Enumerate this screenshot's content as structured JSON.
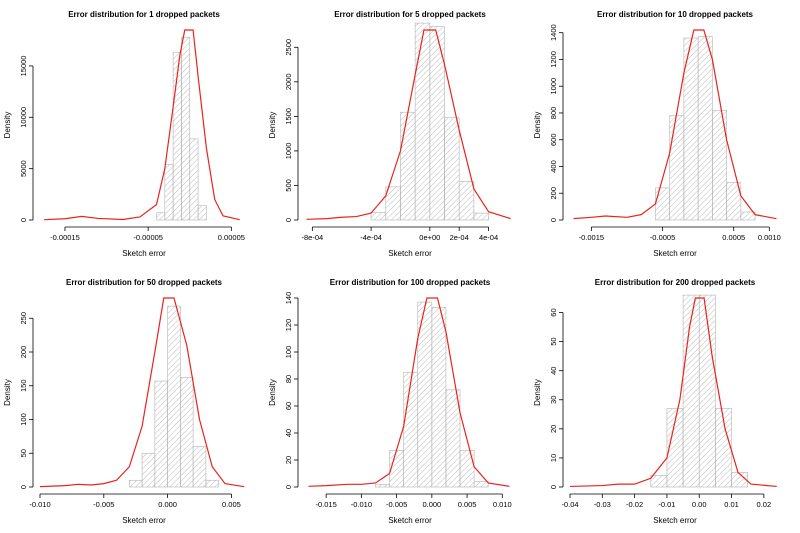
{
  "chart_data": [
    {
      "type": "histogram",
      "title": "Error distribution for 1 dropped packets",
      "xlabel": "Sketch error",
      "ylabel": "Density",
      "xlim": [
        -0.00018,
        7e-05
      ],
      "ylim": [
        0,
        18500
      ],
      "xticks": [
        -0.00015,
        -5e-05,
        5e-05
      ],
      "xtick_labels": [
        "-0.00015",
        "-0.00005",
        "0.00005"
      ],
      "yticks": [
        0,
        5000,
        10000,
        15000
      ],
      "ytick_labels": [
        "0",
        "5000",
        "10000",
        "15000"
      ],
      "bins": [
        [
          -4e-05,
          -3e-05,
          700
        ],
        [
          -3e-05,
          -2e-05,
          5400
        ],
        [
          -2e-05,
          -1e-05,
          16300
        ],
        [
          -1e-05,
          0.0,
          17800
        ],
        [
          0.0,
          1e-05,
          7900
        ],
        [
          1e-05,
          2e-05,
          1400
        ]
      ],
      "density_curve": [
        [
          -0.000175,
          30
        ],
        [
          -0.00015,
          120
        ],
        [
          -0.00013,
          350
        ],
        [
          -0.00011,
          150
        ],
        [
          -8e-05,
          50
        ],
        [
          -6e-05,
          300
        ],
        [
          -4e-05,
          1500
        ],
        [
          -3e-05,
          5000
        ],
        [
          -2e-05,
          11000
        ],
        [
          -1.2e-05,
          16000
        ],
        [
          -6e-06,
          18500
        ],
        [
          4e-06,
          18500
        ],
        [
          1e-05,
          14000
        ],
        [
          2e-05,
          7000
        ],
        [
          3e-05,
          2000
        ],
        [
          4e-05,
          400
        ],
        [
          6e-05,
          30
        ]
      ]
    },
    {
      "type": "histogram",
      "title": "Error distribution for 5 dropped packets",
      "xlabel": "Sketch error",
      "ylabel": "Density",
      "xlim": [
        -0.00085,
        0.00058
      ],
      "ylim": [
        0,
        2750
      ],
      "xticks": [
        -0.0008,
        -0.0004,
        0.0,
        0.0002,
        0.0004
      ],
      "xtick_labels": [
        "-8e-04",
        "-4e-04",
        "0e+00",
        "2e-04",
        "4e-04"
      ],
      "yticks": [
        0,
        500,
        1000,
        1500,
        2000,
        2500
      ],
      "ytick_labels": [
        "0",
        "500",
        "1000",
        "1500",
        "2000",
        "2500"
      ],
      "bins": [
        [
          -0.0004,
          -0.0003,
          110
        ],
        [
          -0.0003,
          -0.0002,
          480
        ],
        [
          -0.0002,
          -0.0001,
          1560
        ],
        [
          -0.0001,
          0.0,
          2850
        ],
        [
          0.0,
          0.0001,
          2800
        ],
        [
          0.0001,
          0.0002,
          1480
        ],
        [
          0.0002,
          0.0003,
          560
        ],
        [
          0.0003,
          0.0004,
          100
        ]
      ],
      "density_curve": [
        [
          -0.00084,
          10
        ],
        [
          -0.0007,
          20
        ],
        [
          -0.0006,
          40
        ],
        [
          -0.0005,
          50
        ],
        [
          -0.0004,
          100
        ],
        [
          -0.0003,
          350
        ],
        [
          -0.0002,
          1000
        ],
        [
          -0.0001,
          2100
        ],
        [
          -4e-05,
          2750
        ],
        [
          4e-05,
          2750
        ],
        [
          0.0001,
          2250
        ],
        [
          0.0002,
          1300
        ],
        [
          0.0003,
          450
        ],
        [
          0.0004,
          120
        ],
        [
          0.00055,
          20
        ]
      ]
    },
    {
      "type": "histogram",
      "title": "Error distribution for 10 dropped packets",
      "xlabel": "Sketch error",
      "ylabel": "Density",
      "xlim": [
        -0.0018,
        0.00115
      ],
      "ylim": [
        0,
        1420
      ],
      "xticks": [
        -0.0015,
        -0.0005,
        0.0005,
        0.001
      ],
      "xtick_labels": [
        "-0.0015",
        "-0.0005",
        "0.0005",
        "0.0010"
      ],
      "yticks": [
        0,
        200,
        400,
        600,
        800,
        1000,
        1200,
        1400
      ],
      "ytick_labels": [
        "0",
        "200",
        "400",
        "600",
        "800",
        "1000",
        "1200",
        "1400"
      ],
      "bins": [
        [
          -0.0006,
          -0.0004,
          240
        ],
        [
          -0.0004,
          -0.0002,
          780
        ],
        [
          -0.0002,
          0.0,
          1360
        ],
        [
          0.0,
          0.0002,
          1370
        ],
        [
          0.0002,
          0.0004,
          820
        ],
        [
          0.0004,
          0.0006,
          280
        ],
        [
          0.0006,
          0.0008,
          60
        ]
      ],
      "density_curve": [
        [
          -0.00175,
          10
        ],
        [
          -0.0015,
          20
        ],
        [
          -0.0013,
          30
        ],
        [
          -0.001,
          20
        ],
        [
          -0.0008,
          40
        ],
        [
          -0.0006,
          120
        ],
        [
          -0.0004,
          500
        ],
        [
          -0.0002,
          1100
        ],
        [
          -6e-05,
          1420
        ],
        [
          8e-05,
          1420
        ],
        [
          0.0002,
          1200
        ],
        [
          0.0004,
          600
        ],
        [
          0.0006,
          180
        ],
        [
          0.0008,
          40
        ],
        [
          0.0011,
          10
        ]
      ]
    },
    {
      "type": "histogram",
      "title": "Error distribution for 50 dropped packets",
      "xlabel": "Sketch error",
      "ylabel": "Density",
      "xlim": [
        -0.01,
        0.0063
      ],
      "ylim": [
        0,
        280
      ],
      "xticks": [
        -0.01,
        -0.005,
        0.0,
        0.005
      ],
      "xtick_labels": [
        "-0.010",
        "-0.005",
        "0.000",
        "0.005"
      ],
      "yticks": [
        0,
        50,
        100,
        150,
        200,
        250
      ],
      "ytick_labels": [
        "0",
        "50",
        "100",
        "150",
        "200",
        "250"
      ],
      "bins": [
        [
          -0.003,
          -0.002,
          10
        ],
        [
          -0.002,
          -0.001,
          50
        ],
        [
          -0.001,
          0.0,
          157
        ],
        [
          0.0,
          0.001,
          268
        ],
        [
          0.001,
          0.002,
          162
        ],
        [
          0.002,
          0.003,
          60
        ],
        [
          0.003,
          0.004,
          10
        ]
      ],
      "density_curve": [
        [
          -0.01,
          0.5
        ],
        [
          -0.008,
          2
        ],
        [
          -0.007,
          4
        ],
        [
          -0.006,
          3
        ],
        [
          -0.005,
          5
        ],
        [
          -0.004,
          10
        ],
        [
          -0.003,
          30
        ],
        [
          -0.002,
          90
        ],
        [
          -0.001,
          200
        ],
        [
          -0.0003,
          280
        ],
        [
          0.0005,
          280
        ],
        [
          0.0015,
          210
        ],
        [
          0.0025,
          100
        ],
        [
          0.0035,
          30
        ],
        [
          0.0045,
          5
        ],
        [
          0.006,
          0.5
        ]
      ]
    },
    {
      "type": "histogram",
      "title": "Error distribution for 100 dropped packets",
      "xlabel": "Sketch error",
      "ylabel": "Density",
      "xlim": [
        -0.018,
        0.0118
      ],
      "ylim": [
        0,
        140
      ],
      "xticks": [
        -0.015,
        -0.01,
        -0.005,
        0.0,
        0.005,
        0.01
      ],
      "xtick_labels": [
        "-0.015",
        "-0.010",
        "-0.005",
        "0.000",
        "0.005",
        "0.010"
      ],
      "yticks": [
        0,
        20,
        40,
        60,
        80,
        100,
        120,
        140
      ],
      "ytick_labels": [
        "0",
        "20",
        "40",
        "60",
        "80",
        "100",
        "120",
        "140"
      ],
      "bins": [
        [
          -0.008,
          -0.006,
          2
        ],
        [
          -0.006,
          -0.004,
          27
        ],
        [
          -0.004,
          -0.002,
          85
        ],
        [
          -0.002,
          0.0,
          137
        ],
        [
          0.0,
          0.002,
          133
        ],
        [
          0.002,
          0.004,
          72
        ],
        [
          0.004,
          0.006,
          27
        ],
        [
          0.006,
          0.008,
          4
        ]
      ],
      "density_curve": [
        [
          -0.0175,
          0.5
        ],
        [
          -0.015,
          1
        ],
        [
          -0.012,
          2
        ],
        [
          -0.01,
          2
        ],
        [
          -0.008,
          3
        ],
        [
          -0.006,
          10
        ],
        [
          -0.004,
          45
        ],
        [
          -0.002,
          110
        ],
        [
          -0.0007,
          140
        ],
        [
          0.0008,
          140
        ],
        [
          0.002,
          115
        ],
        [
          0.004,
          55
        ],
        [
          0.006,
          15
        ],
        [
          0.008,
          3
        ],
        [
          0.011,
          0.5
        ]
      ]
    },
    {
      "type": "histogram",
      "title": "Error distribution for 200 dropped packets",
      "xlabel": "Sketch error",
      "ylabel": "Density",
      "xlim": [
        -0.04,
        0.025
      ],
      "ylim": [
        0,
        65
      ],
      "xticks": [
        -0.04,
        -0.03,
        -0.02,
        -0.01,
        0.0,
        0.01,
        0.02
      ],
      "xtick_labels": [
        "-0.04",
        "-0.03",
        "-0.02",
        "-0.01",
        "0.00",
        "0.01",
        "0.02"
      ],
      "yticks": [
        0,
        10,
        20,
        30,
        40,
        50,
        60
      ],
      "ytick_labels": [
        "0",
        "10",
        "20",
        "30",
        "40",
        "50",
        "60"
      ],
      "bins": [
        [
          -0.015,
          -0.01,
          4
        ],
        [
          -0.01,
          -0.005,
          27
        ],
        [
          -0.005,
          0.0,
          66
        ],
        [
          0.0,
          0.005,
          66
        ],
        [
          0.005,
          0.01,
          27
        ],
        [
          0.01,
          0.015,
          5
        ]
      ],
      "density_curve": [
        [
          -0.04,
          0.2
        ],
        [
          -0.03,
          0.5
        ],
        [
          -0.025,
          1
        ],
        [
          -0.02,
          1
        ],
        [
          -0.015,
          3
        ],
        [
          -0.01,
          10
        ],
        [
          -0.006,
          30
        ],
        [
          -0.003,
          55
        ],
        [
          -0.0012,
          65
        ],
        [
          0.0015,
          65
        ],
        [
          0.004,
          45
        ],
        [
          0.008,
          20
        ],
        [
          0.012,
          5
        ],
        [
          0.016,
          1
        ],
        [
          0.024,
          0.2
        ]
      ]
    }
  ]
}
